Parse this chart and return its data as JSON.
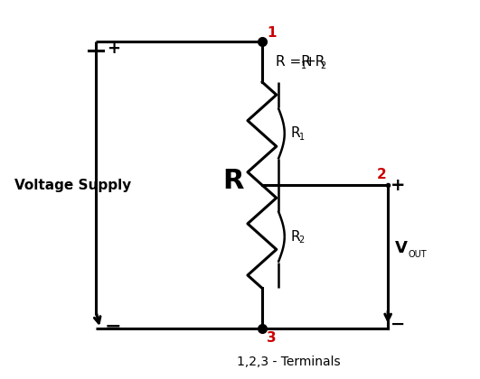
{
  "bg_color": "#ffffff",
  "line_color": "#000000",
  "red_color": "#cc0000",
  "figsize": [
    5.31,
    4.2
  ],
  "dpi": 100,
  "voltage_supply_label": "Voltage Supply",
  "R_label": "R",
  "VOUT_label": "V",
  "OUT_label": "OUT",
  "terminals_label": "1,2,3 - Terminals",
  "node1_label": "1",
  "node2_label": "2",
  "node3_label": "3",
  "plus_top": "+",
  "minus_bot": "−",
  "plus_right": "+",
  "minus_right": "−"
}
